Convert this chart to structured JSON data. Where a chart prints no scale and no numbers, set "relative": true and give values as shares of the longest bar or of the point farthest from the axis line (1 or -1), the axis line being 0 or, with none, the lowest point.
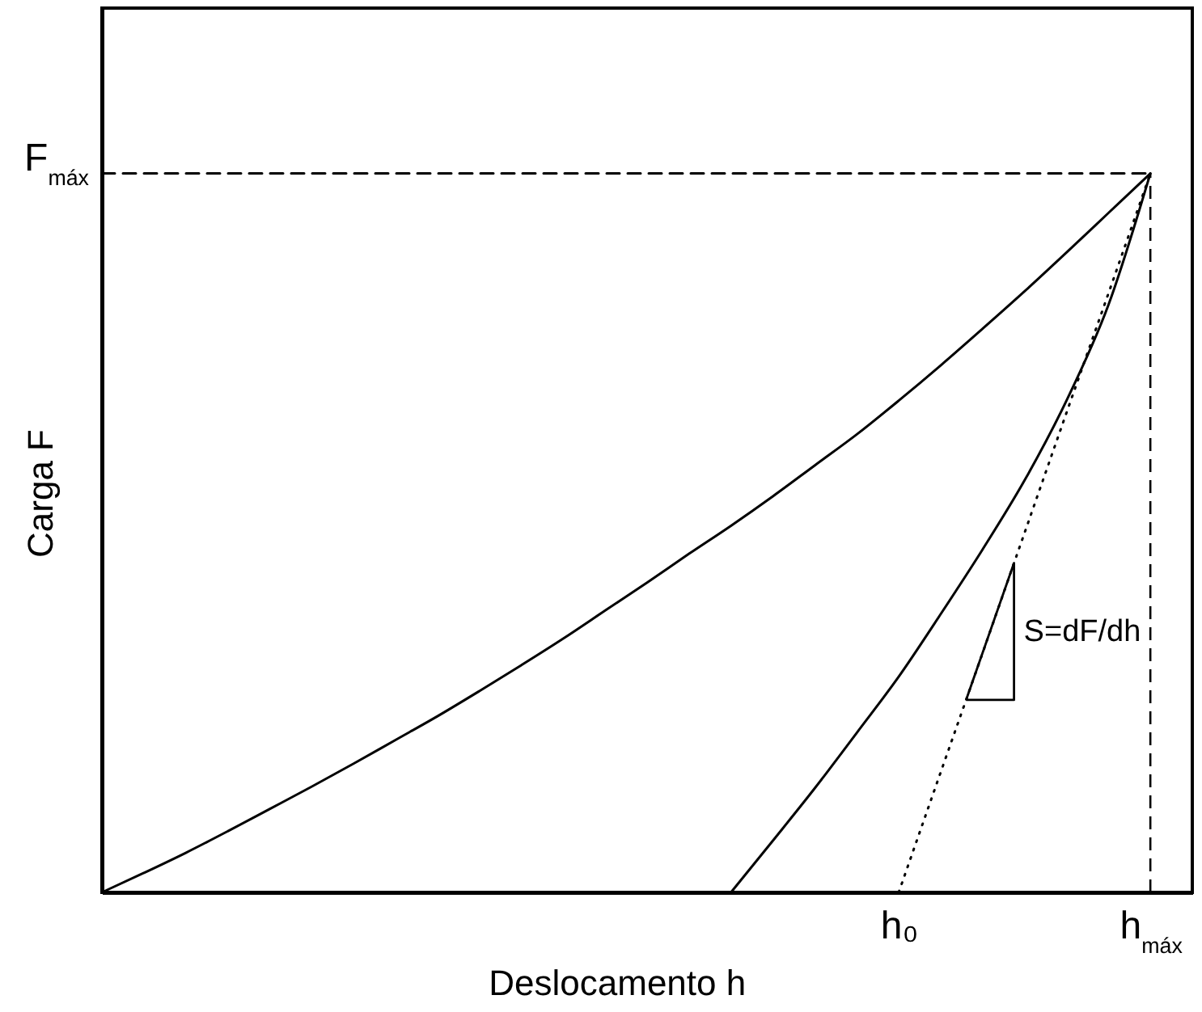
{
  "chart_data": {
    "type": "line",
    "xlabel": "Deslocamento h",
    "ylabel": "Carga F",
    "relative": true,
    "categories": [
      null,
      null,
      null,
      null,
      null,
      null,
      null,
      null,
      null,
      null,
      null,
      null,
      null,
      null,
      null,
      null,
      null,
      null,
      null,
      "h₀",
      null,
      null,
      null,
      null,
      null,
      "h$_{máx}$",
      null
    ],
    "series": [
      {
        "color": "#000000",
        "values": [
          0,
          0.027,
          0.055,
          0.085,
          0.116,
          0.147,
          0.179,
          0.212,
          0.245,
          0.28,
          0.316,
          0.353,
          0.392,
          0.431,
          0.471,
          0.51,
          0.551,
          0.594,
          0.637,
          0.684,
          0.733,
          0.784,
          0.836,
          0.89,
          0.945,
          1,
          null
        ]
      },
      {
        "color": "#000000",
        "values": [
          null,
          null,
          null,
          null,
          null,
          null,
          null,
          null,
          null,
          null,
          null,
          null,
          null,
          null,
          null,
          0,
          0.072,
          0.145,
          0.222,
          0.3,
          0.387,
          0.477,
          0.573,
          0.684,
          0.817,
          1,
          null
        ]
      },
      {
        "color": "#000000",
        "line_style": "dotted",
        "values": [
          null,
          null,
          null,
          null,
          null,
          null,
          null,
          null,
          null,
          null,
          null,
          null,
          null,
          null,
          null,
          null,
          null,
          null,
          null,
          0,
          0.167,
          0.333,
          0.5,
          0.667,
          0.833,
          1,
          null
        ]
      },
      {
        "color": "#000000",
        "line_style": "dashed",
        "values": [
          1,
          1,
          1,
          1,
          1,
          1,
          1,
          1,
          1,
          1,
          1,
          1,
          1,
          1,
          1,
          1,
          1,
          1,
          1,
          1,
          1,
          1,
          1,
          1,
          1,
          1,
          null
        ]
      }
    ],
    "ref_lines": [
      {
        "axis": "x",
        "value": "h$_{máx}$",
        "line_style": "dashed",
        "color": "#000000"
      }
    ],
    "annotations": [
      "F$_{máx}$",
      "S=dF/dh"
    ]
  }
}
